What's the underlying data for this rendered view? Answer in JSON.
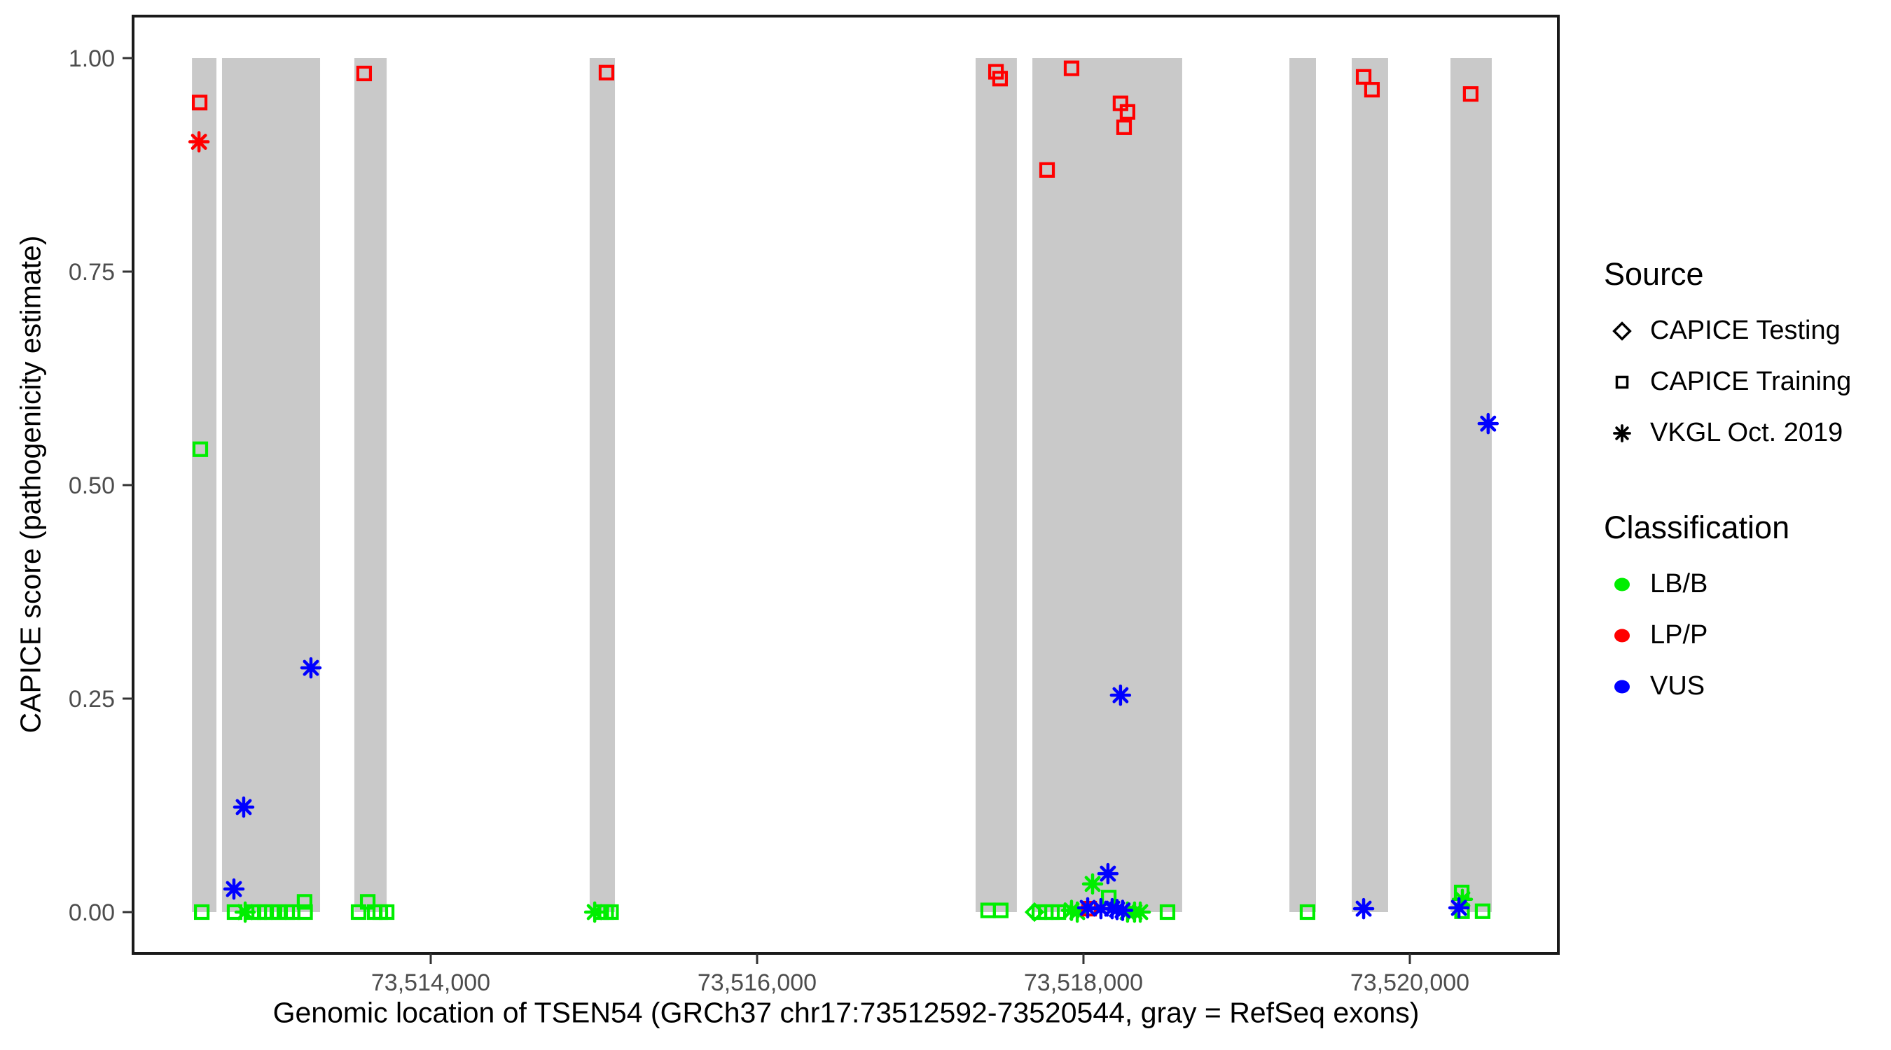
{
  "chart_data": {
    "type": "scatter",
    "title": "",
    "xlabel": "Genomic location of TSEN54 (GRCh37 chr17:73512592-73520544, gray = RefSeq exons)",
    "ylabel": "CAPICE score (pathogenicity estimate)",
    "x_axis": {
      "domain_bp": [
        73512176,
        73520910
      ],
      "ticks": [
        {
          "value": 73514000,
          "label": "73,514,000"
        },
        {
          "value": 73516000,
          "label": "73,516,000"
        },
        {
          "value": 73518000,
          "label": "73,518,000"
        },
        {
          "value": 73520000,
          "label": "73,520,000"
        }
      ]
    },
    "y_axis": {
      "min": 0,
      "max": 1,
      "ticks": [
        {
          "value": 0.0,
          "label": "0.00"
        },
        {
          "value": 0.25,
          "label": "0.25"
        },
        {
          "value": 0.5,
          "label": "0.50"
        },
        {
          "value": 0.75,
          "label": "0.75"
        },
        {
          "value": 1.0,
          "label": "1.00"
        }
      ]
    },
    "grid": false,
    "legend_position": "right",
    "exon_note": "gray = RefSeq exons",
    "exons_bp": [
      [
        73512537,
        73512687
      ],
      [
        73512721,
        73513322
      ],
      [
        73513532,
        73513730
      ],
      [
        73514974,
        73515129
      ],
      [
        73517339,
        73517592
      ],
      [
        73517687,
        73518605
      ],
      [
        73519262,
        73519425
      ],
      [
        73519644,
        73519867
      ],
      [
        73520249,
        73520502
      ]
    ],
    "colors": {
      "LB/B": "#00ee00",
      "LP/P": "#ff0000",
      "VUS": "#0000ff",
      "exon": "#c9c9c9",
      "tick_text": "#4d4d4d",
      "panel_border": "#1a1a1a"
    },
    "shape_by_source": {
      "CAPICE Testing": "diamond",
      "CAPICE Training": "square",
      "VKGL Oct. 2019": "asterisk"
    },
    "points": [
      {
        "bp": 73512588,
        "score": 0.542,
        "classification": "LB/B",
        "source": "CAPICE Training"
      },
      {
        "bp": 73512597,
        "score": 0.0,
        "classification": "LB/B",
        "source": "CAPICE Training"
      },
      {
        "bp": 73512798,
        "score": 0.0,
        "classification": "LB/B",
        "source": "CAPICE Training"
      },
      {
        "bp": 73512863,
        "score": 0.0,
        "classification": "LB/B",
        "source": "VKGL Oct. 2019"
      },
      {
        "bp": 73512914,
        "score": 0.0,
        "classification": "LB/B",
        "source": "CAPICE Training"
      },
      {
        "bp": 73512949,
        "score": 0.0,
        "classification": "LB/B",
        "source": "CAPICE Training"
      },
      {
        "bp": 73512983,
        "score": 0.0,
        "classification": "LB/B",
        "source": "CAPICE Training"
      },
      {
        "bp": 73513026,
        "score": 0.0,
        "classification": "LB/B",
        "source": "CAPICE Training"
      },
      {
        "bp": 73513069,
        "score": 0.0,
        "classification": "LB/B",
        "source": "CAPICE Training"
      },
      {
        "bp": 73513120,
        "score": 0.0,
        "classification": "LB/B",
        "source": "CAPICE Training"
      },
      {
        "bp": 73513154,
        "score": 0.0,
        "classification": "LB/B",
        "source": "CAPICE Training"
      },
      {
        "bp": 73513227,
        "score": 0.012,
        "classification": "LB/B",
        "source": "CAPICE Training"
      },
      {
        "bp": 73513230,
        "score": 0.0,
        "classification": "LB/B",
        "source": "CAPICE Training"
      },
      {
        "bp": 73513558,
        "score": 0.0,
        "classification": "LB/B",
        "source": "CAPICE Training"
      },
      {
        "bp": 73513614,
        "score": 0.012,
        "classification": "LB/B",
        "source": "CAPICE Training"
      },
      {
        "bp": 73513657,
        "score": 0.0,
        "classification": "LB/B",
        "source": "CAPICE Training"
      },
      {
        "bp": 73513691,
        "score": 0.0,
        "classification": "LB/B",
        "source": "CAPICE Training"
      },
      {
        "bp": 73513730,
        "score": 0.0,
        "classification": "LB/B",
        "source": "CAPICE Training"
      },
      {
        "bp": 73515005,
        "score": 0.0,
        "classification": "LB/B",
        "source": "VKGL Oct. 2019"
      },
      {
        "bp": 73515045,
        "score": 0.0,
        "classification": "LB/B",
        "source": "CAPICE Training"
      },
      {
        "bp": 73515075,
        "score": 0.0,
        "classification": "LB/B",
        "source": "CAPICE Training"
      },
      {
        "bp": 73515105,
        "score": 0.0,
        "classification": "LB/B",
        "source": "CAPICE Training"
      },
      {
        "bp": 73517416,
        "score": 0.002,
        "classification": "LB/B",
        "source": "CAPICE Training"
      },
      {
        "bp": 73517493,
        "score": 0.002,
        "classification": "LB/B",
        "source": "CAPICE Training"
      },
      {
        "bp": 73517700,
        "score": 0.0,
        "classification": "LB/B",
        "source": "CAPICE Testing"
      },
      {
        "bp": 73517730,
        "score": 0.0,
        "classification": "LB/B",
        "source": "CAPICE Training"
      },
      {
        "bp": 73517769,
        "score": 0.0,
        "classification": "LB/B",
        "source": "CAPICE Training"
      },
      {
        "bp": 73517807,
        "score": 0.0,
        "classification": "LB/B",
        "source": "CAPICE Training"
      },
      {
        "bp": 73517846,
        "score": 0.0,
        "classification": "LB/B",
        "source": "CAPICE Training"
      },
      {
        "bp": 73517927,
        "score": 0.002,
        "classification": "LB/B",
        "source": "VKGL Oct. 2019"
      },
      {
        "bp": 73517962,
        "score": 0.0,
        "classification": "LB/B",
        "source": "VKGL Oct. 2019"
      },
      {
        "bp": 73518056,
        "score": 0.033,
        "classification": "LB/B",
        "source": "VKGL Oct. 2019"
      },
      {
        "bp": 73518155,
        "score": 0.017,
        "classification": "LB/B",
        "source": "CAPICE Training"
      },
      {
        "bp": 73518270,
        "score": 0.0,
        "classification": "LB/B",
        "source": "VKGL Oct. 2019"
      },
      {
        "bp": 73518313,
        "score": 0.0,
        "classification": "LB/B",
        "source": "VKGL Oct. 2019"
      },
      {
        "bp": 73518348,
        "score": 0.0,
        "classification": "LB/B",
        "source": "VKGL Oct. 2019"
      },
      {
        "bp": 73518515,
        "score": 0.0,
        "classification": "LB/B",
        "source": "CAPICE Training"
      },
      {
        "bp": 73519373,
        "score": 0.0,
        "classification": "LB/B",
        "source": "CAPICE Training"
      },
      {
        "bp": 73520318,
        "score": 0.023,
        "classification": "LB/B",
        "source": "CAPICE Training"
      },
      {
        "bp": 73520322,
        "score": 0.015,
        "classification": "LB/B",
        "source": "VKGL Oct. 2019"
      },
      {
        "bp": 73520320,
        "score": 0.001,
        "classification": "LB/B",
        "source": "CAPICE Training"
      },
      {
        "bp": 73520446,
        "score": 0.001,
        "classification": "LB/B",
        "source": "CAPICE Training"
      },
      {
        "bp": 73512584,
        "score": 0.948,
        "classification": "LP/P",
        "source": "CAPICE Training"
      },
      {
        "bp": 73512580,
        "score": 0.902,
        "classification": "LP/P",
        "source": "VKGL Oct. 2019"
      },
      {
        "bp": 73513592,
        "score": 0.982,
        "classification": "LP/P",
        "source": "CAPICE Training"
      },
      {
        "bp": 73515077,
        "score": 0.983,
        "classification": "LP/P",
        "source": "CAPICE Training"
      },
      {
        "bp": 73517464,
        "score": 0.984,
        "classification": "LP/P",
        "source": "CAPICE Training"
      },
      {
        "bp": 73517489,
        "score": 0.976,
        "classification": "LP/P",
        "source": "CAPICE Training"
      },
      {
        "bp": 73517777,
        "score": 0.869,
        "classification": "LP/P",
        "source": "CAPICE Training"
      },
      {
        "bp": 73517927,
        "score": 0.988,
        "classification": "LP/P",
        "source": "CAPICE Training"
      },
      {
        "bp": 73518035,
        "score": 0.004,
        "classification": "LP/P",
        "source": "CAPICE Training"
      },
      {
        "bp": 73518227,
        "score": 0.947,
        "classification": "LP/P",
        "source": "CAPICE Training"
      },
      {
        "bp": 73518249,
        "score": 0.919,
        "classification": "LP/P",
        "source": "CAPICE Training"
      },
      {
        "bp": 73518270,
        "score": 0.937,
        "classification": "LP/P",
        "source": "CAPICE Training"
      },
      {
        "bp": 73519717,
        "score": 0.978,
        "classification": "LP/P",
        "source": "CAPICE Training"
      },
      {
        "bp": 73519768,
        "score": 0.963,
        "classification": "LP/P",
        "source": "CAPICE Training"
      },
      {
        "bp": 73520373,
        "score": 0.958,
        "classification": "LP/P",
        "source": "CAPICE Training"
      },
      {
        "bp": 73512794,
        "score": 0.027,
        "classification": "VUS",
        "source": "VKGL Oct. 2019"
      },
      {
        "bp": 73512854,
        "score": 0.123,
        "classification": "VUS",
        "source": "VKGL Oct. 2019"
      },
      {
        "bp": 73513266,
        "score": 0.286,
        "classification": "VUS",
        "source": "VKGL Oct. 2019"
      },
      {
        "bp": 73518026,
        "score": 0.005,
        "classification": "VUS",
        "source": "VKGL Oct. 2019"
      },
      {
        "bp": 73518107,
        "score": 0.004,
        "classification": "VUS",
        "source": "VKGL Oct. 2019"
      },
      {
        "bp": 73518150,
        "score": 0.045,
        "classification": "VUS",
        "source": "VKGL Oct. 2019"
      },
      {
        "bp": 73518176,
        "score": 0.004,
        "classification": "VUS",
        "source": "VKGL Oct. 2019"
      },
      {
        "bp": 73518206,
        "score": 0.003,
        "classification": "VUS",
        "source": "VKGL Oct. 2019"
      },
      {
        "bp": 73518240,
        "score": 0.002,
        "classification": "VUS",
        "source": "VKGL Oct. 2019"
      },
      {
        "bp": 73518227,
        "score": 0.254,
        "classification": "VUS",
        "source": "VKGL Oct. 2019"
      },
      {
        "bp": 73519717,
        "score": 0.004,
        "classification": "VUS",
        "source": "VKGL Oct. 2019"
      },
      {
        "bp": 73520301,
        "score": 0.005,
        "classification": "VUS",
        "source": "VKGL Oct. 2019"
      },
      {
        "bp": 73520480,
        "score": 0.572,
        "classification": "VUS",
        "source": "VKGL Oct. 2019"
      }
    ]
  },
  "legend": {
    "source": {
      "title": "Source",
      "items": [
        {
          "label": "CAPICE Testing",
          "shape": "diamond"
        },
        {
          "label": "CAPICE Training",
          "shape": "square"
        },
        {
          "label": "VKGL Oct. 2019",
          "shape": "asterisk"
        }
      ]
    },
    "classification": {
      "title": "Classification",
      "items": [
        {
          "label": "LB/B",
          "color": "#00ee00"
        },
        {
          "label": "LP/P",
          "color": "#ff0000"
        },
        {
          "label": "VUS",
          "color": "#0000ff"
        }
      ]
    }
  }
}
